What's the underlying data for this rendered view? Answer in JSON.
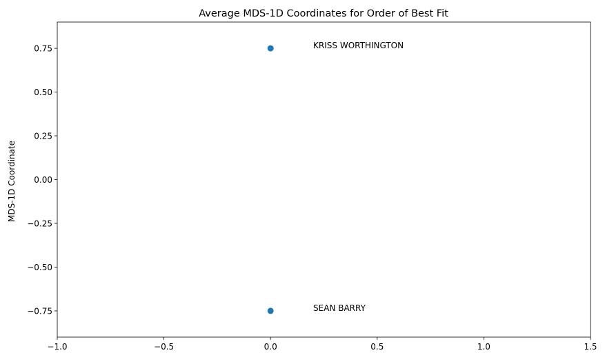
{
  "chart_data": {
    "type": "scatter",
    "title": "Average MDS-1D Coordinates for Order of Best Fit",
    "xlabel": "",
    "ylabel": "MDS-1D Coordinate",
    "xlim": [
      -1.0,
      1.5
    ],
    "ylim": [
      -0.9,
      0.9
    ],
    "xticks": [
      -1.0,
      -0.5,
      0.0,
      0.5,
      1.0,
      1.5
    ],
    "xtick_labels": [
      "−1.0",
      "−0.5",
      "0.0",
      "0.5",
      "1.0",
      "1.5"
    ],
    "yticks": [
      0.75,
      0.5,
      0.25,
      0.0,
      -0.25,
      -0.5,
      -0.75
    ],
    "ytick_labels": [
      "0.75",
      "0.50",
      "0.25",
      "0.00",
      "−0.25",
      "−0.50",
      "−0.75"
    ],
    "grid": false,
    "marker_color": "#1f77b4",
    "points": [
      {
        "x": 0.0,
        "y": 0.75,
        "label": "KRISS WORTHINGTON"
      },
      {
        "x": 0.0,
        "y": -0.75,
        "label": "SEAN BARRY"
      }
    ],
    "label_offset": {
      "x": 0.2,
      "y": 0.0
    }
  }
}
